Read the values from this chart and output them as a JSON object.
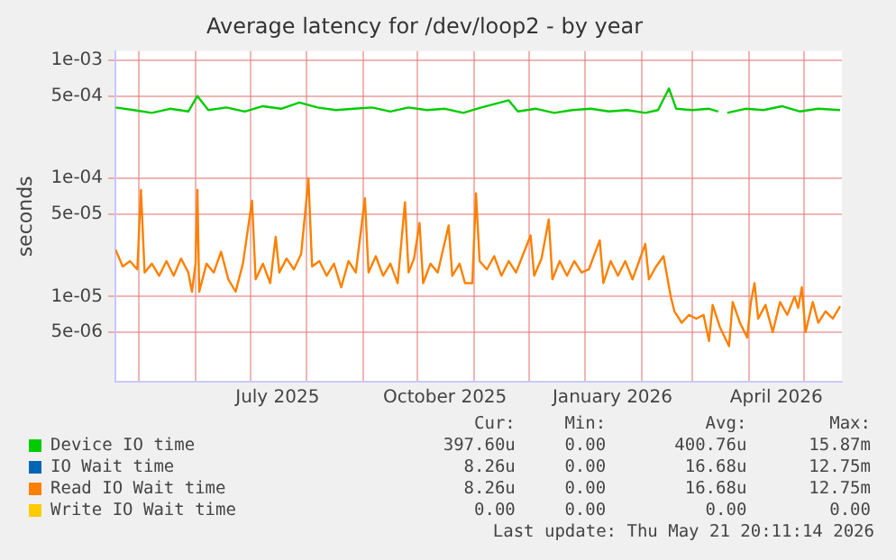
{
  "chart_data": {
    "type": "line",
    "title": "Average latency for /dev/loop2 - by year",
    "ylabel": "seconds",
    "log": "y",
    "grid": true,
    "legend": "bottom",
    "marker": "none",
    "line_style": "solid",
    "xlim": [
      "2025-04-18",
      "2026-05-22"
    ],
    "xticks": [
      {
        "value": "2025-05-01",
        "label": null
      },
      {
        "value": "2025-06-01",
        "label": null
      },
      {
        "value": "2025-07-01",
        "label": null
      },
      {
        "value": "2025-07-16",
        "label": "July 2025"
      },
      {
        "value": "2025-08-01",
        "label": null
      },
      {
        "value": "2025-09-01",
        "label": null
      },
      {
        "value": "2025-10-01",
        "label": null
      },
      {
        "value": "2025-10-16",
        "label": "October 2025"
      },
      {
        "value": "2025-11-01",
        "label": null
      },
      {
        "value": "2025-12-01",
        "label": null
      },
      {
        "value": "2026-01-01",
        "label": null
      },
      {
        "value": "2026-01-16",
        "label": "January 2026"
      },
      {
        "value": "2026-02-01",
        "label": null
      },
      {
        "value": "2026-03-01",
        "label": null
      },
      {
        "value": "2026-04-01",
        "label": null
      },
      {
        "value": "2026-04-16",
        "label": "April 2026"
      },
      {
        "value": "2026-05-01",
        "label": null
      }
    ],
    "ylim": [
      1.9e-06,
      0.0012
    ],
    "yticks": [
      {
        "value": 5e-06,
        "label": "5e-06"
      },
      {
        "value": 1e-05,
        "label": "1e-05"
      },
      {
        "value": 5e-05,
        "label": "5e-05"
      },
      {
        "value": 0.0001,
        "label": "1e-04"
      },
      {
        "value": 0.0005,
        "label": "5e-04"
      },
      {
        "value": 0.001,
        "label": "1e-03"
      }
    ],
    "annotations": [
      "Cur:",
      "Min:",
      "Avg:",
      "Max:",
      "397.60u",
      "0.00",
      "400.76u",
      "15.87m",
      "8.26u",
      "0.00",
      "16.68u",
      "12.75m",
      "8.26u",
      "0.00",
      "16.68u",
      "12.75m",
      "0.00",
      "0.00",
      "0.00",
      "0.00",
      "Last update: Thu May 21 20:11:14 2026"
    ],
    "series": [
      {
        "name": "Device IO time",
        "color": "#00cc00",
        "x": [
          "2025-04-18",
          "2025-04-28",
          "2025-05-08",
          "2025-05-18",
          "2025-05-28",
          "2025-06-02",
          "2025-06-08",
          "2025-06-18",
          "2025-06-28",
          "2025-07-08",
          "2025-07-18",
          "2025-07-28",
          "2025-08-07",
          "2025-08-17",
          "2025-08-27",
          "2025-09-06",
          "2025-09-16",
          "2025-09-26",
          "2025-10-06",
          "2025-10-16",
          "2025-10-26",
          "2025-11-05",
          "2025-11-20",
          "2025-11-25",
          "2025-12-05",
          "2025-12-15",
          "2025-12-25",
          "2026-01-04",
          "2026-01-14",
          "2026-01-24",
          "2026-02-03",
          "2026-02-10",
          "2026-02-16",
          "2026-02-20",
          "2026-03-01",
          "2026-03-10",
          "2026-03-15",
          "2026-03-17",
          "2026-03-20",
          "2026-03-30",
          "2026-04-09",
          "2026-04-19",
          "2026-04-29",
          "2026-05-09",
          "2026-05-21"
        ],
        "values": [
          0.0004,
          0.00038,
          0.00036,
          0.00039,
          0.00037,
          0.0005,
          0.00038,
          0.0004,
          0.00037,
          0.00041,
          0.00039,
          0.00044,
          0.0004,
          0.00038,
          0.00039,
          0.0004,
          0.00037,
          0.0004,
          0.00038,
          0.00039,
          0.00036,
          0.0004,
          0.00046,
          0.00037,
          0.00039,
          0.00036,
          0.00038,
          0.00039,
          0.00037,
          0.00038,
          0.00036,
          0.00038,
          0.00058,
          0.00039,
          0.00038,
          0.00039,
          0.00037,
          null,
          0.00036,
          0.00039,
          0.00038,
          0.00041,
          0.00037,
          0.00039,
          0.00038
        ]
      },
      {
        "name": "IO Wait time",
        "color": "#0066b3"
      },
      {
        "name": "Read IO Wait time",
        "color": "#ff8000",
        "x": [
          "2025-04-18",
          "2025-04-22",
          "2025-04-26",
          "2025-04-30",
          "2025-05-02",
          "2025-05-04",
          "2025-05-08",
          "2025-05-12",
          "2025-05-16",
          "2025-05-20",
          "2025-05-24",
          "2025-05-28",
          "2025-05-30",
          "2025-06-01",
          "2025-06-02",
          "2025-06-03",
          "2025-06-07",
          "2025-06-11",
          "2025-06-15",
          "2025-06-19",
          "2025-06-23",
          "2025-06-27",
          "2025-07-02",
          "2025-07-04",
          "2025-07-08",
          "2025-07-12",
          "2025-07-15",
          "2025-07-17",
          "2025-07-21",
          "2025-07-25",
          "2025-07-29",
          "2025-08-02",
          "2025-08-04",
          "2025-08-08",
          "2025-08-12",
          "2025-08-16",
          "2025-08-20",
          "2025-08-24",
          "2025-08-28",
          "2025-09-02",
          "2025-09-04",
          "2025-09-08",
          "2025-09-12",
          "2025-09-16",
          "2025-09-20",
          "2025-09-24",
          "2025-09-26",
          "2025-09-29",
          "2025-10-02",
          "2025-10-04",
          "2025-10-08",
          "2025-10-12",
          "2025-10-18",
          "2025-10-20",
          "2025-10-24",
          "2025-10-27",
          "2025-10-31",
          "2025-11-02",
          "2025-11-04",
          "2025-11-08",
          "2025-11-12",
          "2025-11-16",
          "2025-11-20",
          "2025-11-24",
          "2025-12-02",
          "2025-12-04",
          "2025-12-08",
          "2025-12-12",
          "2025-12-14",
          "2025-12-18",
          "2025-12-22",
          "2025-12-26",
          "2025-12-30",
          "2026-01-03",
          "2026-01-09",
          "2026-01-11",
          "2026-01-15",
          "2026-01-19",
          "2026-01-23",
          "2026-01-27",
          "2026-02-03",
          "2026-02-05",
          "2026-02-09",
          "2026-02-13",
          "2026-02-17",
          "2026-02-19",
          "2026-02-23",
          "2026-02-27",
          "2026-03-03",
          "2026-03-07",
          "2026-03-10",
          "2026-03-12",
          "2026-03-16",
          "2026-03-21",
          "2026-03-23",
          "2026-03-27",
          "2026-03-31",
          "2026-04-02",
          "2026-04-04",
          "2026-04-06",
          "2026-04-10",
          "2026-04-14",
          "2026-04-18",
          "2026-04-22",
          "2026-04-26",
          "2026-04-28",
          "2026-04-30",
          "2026-05-02",
          "2026-05-06",
          "2026-05-09",
          "2026-05-13",
          "2026-05-17",
          "2026-05-21"
        ],
        "values": [
          2.5e-05,
          1.8e-05,
          2e-05,
          1.7e-05,
          8e-05,
          1.6e-05,
          1.9e-05,
          1.5e-05,
          2e-05,
          1.5e-05,
          2.1e-05,
          1.6e-05,
          1.1e-05,
          1.9e-05,
          8e-05,
          1.1e-05,
          1.9e-05,
          1.6e-05,
          2.4e-05,
          1.4e-05,
          1.1e-05,
          1.9e-05,
          6.5e-05,
          1.4e-05,
          1.9e-05,
          1.3e-05,
          3.2e-05,
          1.6e-05,
          2.1e-05,
          1.7e-05,
          2.3e-05,
          0.0001,
          1.8e-05,
          2e-05,
          1.5e-05,
          1.9e-05,
          1.2e-05,
          2e-05,
          1.6e-05,
          6.8e-05,
          1.6e-05,
          2.2e-05,
          1.5e-05,
          1.9e-05,
          1.3e-05,
          6.3e-05,
          1.6e-05,
          2.1e-05,
          4.2e-05,
          1.3e-05,
          1.9e-05,
          1.6e-05,
          4e-05,
          1.5e-05,
          1.9e-05,
          1.3e-05,
          1.3e-05,
          7.5e-05,
          2e-05,
          1.7e-05,
          2.2e-05,
          1.5e-05,
          2e-05,
          1.6e-05,
          3.3e-05,
          1.5e-05,
          2.1e-05,
          4.5e-05,
          1.4e-05,
          2e-05,
          1.5e-05,
          2e-05,
          1.6e-05,
          1.7e-05,
          3e-05,
          1.3e-05,
          2e-05,
          1.5e-05,
          2e-05,
          1.4e-05,
          2.8e-05,
          1.4e-05,
          1.8e-05,
          2.2e-05,
          1e-05,
          7.5e-06,
          6e-06,
          7e-06,
          6.5e-06,
          7e-06,
          4.2e-06,
          8.5e-06,
          5.5e-06,
          3.8e-06,
          9e-06,
          6e-06,
          4.5e-06,
          9e-06,
          1.3e-05,
          6.5e-06,
          8.5e-06,
          5e-06,
          9e-06,
          7e-06,
          1e-05,
          8e-06,
          1.2e-05,
          5e-06,
          9e-06,
          6e-06,
          7.5e-06,
          6.5e-06,
          8.3e-06
        ]
      },
      {
        "name": "Write IO Wait time",
        "color": "#ffcc00"
      }
    ]
  }
}
